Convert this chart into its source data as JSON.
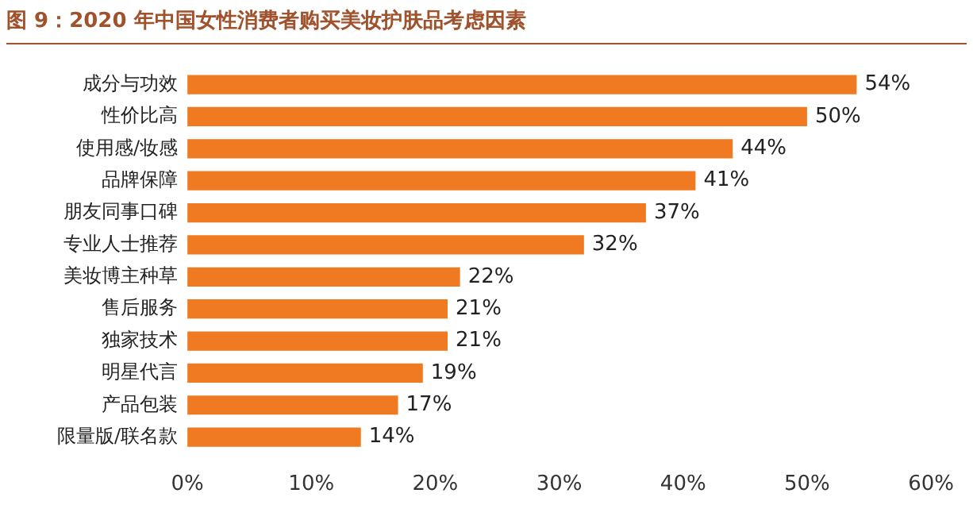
{
  "chart_data": {
    "type": "bar",
    "orientation": "horizontal",
    "title": "图 9：2020 年中国女性消费者购买美妆护肤品考虑因素",
    "categories": [
      "成分与功效",
      "性价比高",
      "使用感/妆感",
      "品牌保障",
      "朋友同事口碑",
      "专业人士推荐",
      "美妆博主种草",
      "售后服务",
      "独家技术",
      "明星代言",
      "产品包装",
      "限量版/联名款"
    ],
    "values": [
      54,
      50,
      44,
      41,
      37,
      32,
      22,
      21,
      21,
      19,
      17,
      14
    ],
    "value_labels": [
      "54%",
      "50%",
      "44%",
      "41%",
      "37%",
      "32%",
      "22%",
      "21%",
      "21%",
      "19%",
      "17%",
      "14%"
    ],
    "color": "#f07a22",
    "xlim": [
      0,
      60
    ],
    "xticks": [
      {
        "value": 0,
        "label": "0%"
      },
      {
        "value": 10,
        "label": "10%"
      },
      {
        "value": 20,
        "label": "20%"
      },
      {
        "value": 30,
        "label": "30%"
      },
      {
        "value": 40,
        "label": "40%"
      },
      {
        "value": 50,
        "label": "50%"
      },
      {
        "value": 60,
        "label": "60%"
      }
    ],
    "grid": false,
    "legend": false
  }
}
